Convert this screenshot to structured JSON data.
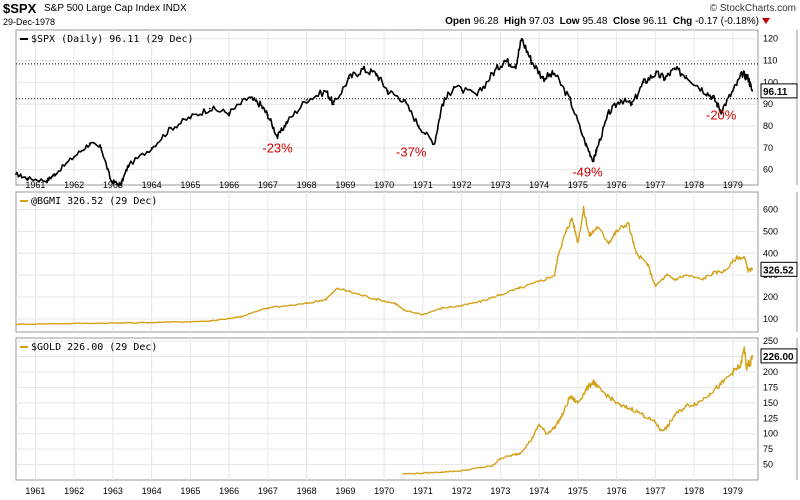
{
  "header": {
    "symbol": "$SPX",
    "name": "S&P 500 Large Cap Index",
    "exchange": "INDX",
    "brand": "© StockCharts.com",
    "date": "29-Dec-1978",
    "open_label": "Open",
    "open": "96.28",
    "high_label": "High",
    "high": "97.03",
    "low_label": "Low",
    "low": "95.48",
    "close_label": "Close",
    "close": "96.11",
    "chg_label": "Chg",
    "chg": "-0.17 (-0.18%)"
  },
  "colors": {
    "spx": "#000000",
    "gold": "#d4a21a",
    "drawdown": "#d00000",
    "grid": "#e6e6e6"
  },
  "chart_data": [
    {
      "type": "line",
      "id": "spx",
      "series_label": "$SPX (Daily) 96.11 (29 Dec)",
      "last_value": "96.11",
      "ylim": [
        53,
        124
      ],
      "yticks": [
        60,
        70,
        80,
        90,
        100,
        110,
        120
      ],
      "ref_lines": [
        108.5,
        92.5
      ],
      "x": [
        1960.0,
        1960.3,
        1960.8,
        1961.0,
        1961.5,
        1961.9,
        1962.2,
        1962.45,
        1962.7,
        1962.9,
        1963.5,
        1964.0,
        1964.5,
        1965.0,
        1965.5,
        1966.0,
        1966.3,
        1966.5,
        1966.75,
        1967.0,
        1967.5,
        1968.0,
        1968.2,
        1968.6,
        1968.95,
        1969.3,
        1969.6,
        1970.0,
        1970.4,
        1970.8,
        1971.0,
        1971.3,
        1971.9,
        1972.3,
        1972.6,
        1972.9,
        1973.05,
        1973.3,
        1973.6,
        1973.9,
        1974.3,
        1974.7,
        1974.9,
        1975.0,
        1975.3,
        1975.6,
        1975.9,
        1976.2,
        1976.5,
        1976.75,
        1977.0,
        1977.3,
        1977.7,
        1978.0,
        1978.2,
        1978.5,
        1978.75,
        1978.9,
        1979.0
      ],
      "values": [
        58,
        56,
        55,
        58,
        66,
        72,
        70,
        55,
        53,
        62,
        70,
        79,
        84,
        88,
        86,
        93,
        90,
        85,
        75,
        82,
        92,
        96,
        90,
        102,
        106,
        104,
        96,
        92,
        80,
        72,
        90,
        98,
        94,
        104,
        110,
        108,
        120,
        110,
        102,
        104,
        92,
        72,
        64,
        70,
        86,
        92,
        90,
        100,
        104,
        102,
        106,
        103,
        97,
        93,
        87,
        96,
        104,
        102,
        96.11
      ],
      "drawdowns": [
        {
          "label": "-23%",
          "x": 1966.75,
          "y": 68
        },
        {
          "label": "-37%",
          "x": 1970.2,
          "y": 66
        },
        {
          "label": "-49%",
          "x": 1974.75,
          "y": 57
        },
        {
          "label": "-20%",
          "x": 1978.2,
          "y": 83
        }
      ]
    },
    {
      "type": "line",
      "id": "bgmi",
      "series_label": "@BGMI 326.52 (29 Dec)",
      "last_value": "326.52",
      "ylim": [
        40,
        680
      ],
      "yticks": [
        100,
        200,
        300,
        400,
        500,
        600
      ],
      "x": [
        1960.0,
        1961.0,
        1962.0,
        1963.0,
        1964.0,
        1965.0,
        1965.8,
        1966.5,
        1967.5,
        1968.0,
        1968.3,
        1968.8,
        1969.3,
        1969.8,
        1970.0,
        1970.5,
        1971.0,
        1971.5,
        1972.0,
        1972.5,
        1973.0,
        1973.5,
        1973.9,
        1974.0,
        1974.2,
        1974.35,
        1974.5,
        1974.65,
        1974.8,
        1975.0,
        1975.3,
        1975.5,
        1975.8,
        1976.0,
        1976.3,
        1976.5,
        1976.8,
        1977.0,
        1977.3,
        1977.7,
        1978.0,
        1978.3,
        1978.6,
        1978.8,
        1978.9,
        1979.0
      ],
      "values": [
        75,
        78,
        80,
        82,
        85,
        90,
        110,
        150,
        170,
        190,
        240,
        215,
        190,
        170,
        140,
        120,
        150,
        160,
        180,
        210,
        240,
        270,
        300,
        400,
        500,
        560,
        450,
        600,
        480,
        520,
        450,
        500,
        540,
        400,
        350,
        250,
        300,
        280,
        300,
        280,
        310,
        320,
        380,
        380,
        320,
        326.52
      ]
    },
    {
      "type": "line",
      "id": "gold",
      "series_label": "$GOLD 226.00 (29 Dec)",
      "last_value": "226.00",
      "ylim": [
        25,
        255
      ],
      "yticks": [
        50,
        75,
        100,
        125,
        150,
        175,
        200,
        225,
        250
      ],
      "x": [
        1970.0,
        1970.5,
        1971.0,
        1971.5,
        1972.0,
        1972.3,
        1972.5,
        1972.8,
        1973.0,
        1973.3,
        1973.5,
        1973.7,
        1973.9,
        1974.1,
        1974.3,
        1974.5,
        1974.7,
        1974.9,
        1975.0,
        1975.3,
        1975.6,
        1975.9,
        1976.2,
        1976.5,
        1976.65,
        1976.8,
        1977.0,
        1977.3,
        1977.6,
        1977.9,
        1978.2,
        1978.5,
        1978.7,
        1978.8,
        1978.85,
        1978.9,
        1978.95,
        1979.0
      ],
      "values": [
        35,
        36,
        38,
        40,
        45,
        48,
        60,
        65,
        68,
        90,
        115,
        100,
        110,
        130,
        160,
        150,
        170,
        185,
        175,
        160,
        145,
        140,
        130,
        118,
        105,
        110,
        130,
        145,
        150,
        165,
        180,
        200,
        210,
        240,
        205,
        215,
        212,
        226.0
      ]
    }
  ],
  "x_axis": {
    "range": [
      1960.0,
      1979.15
    ],
    "labels": [
      "1961",
      "1962",
      "1963",
      "1964",
      "1965",
      "1966",
      "1967",
      "1968",
      "1969",
      "1970",
      "1971",
      "1972",
      "1973",
      "1974",
      "1975",
      "1976",
      "1977",
      "1978",
      "1979"
    ]
  }
}
